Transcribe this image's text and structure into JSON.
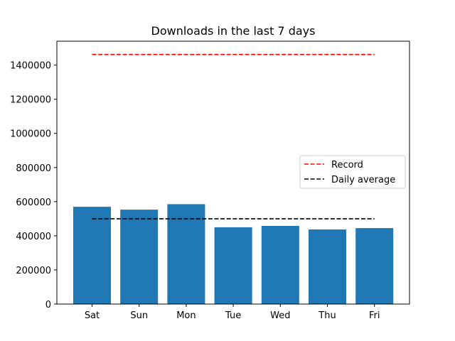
{
  "chart_data": {
    "type": "bar",
    "title": "Downloads in the last 7 days",
    "xlabel": "",
    "ylabel": "",
    "categories": [
      "Sat",
      "Sun",
      "Mon",
      "Tue",
      "Wed",
      "Thu",
      "Fri"
    ],
    "values": [
      570000,
      553000,
      585000,
      450000,
      458000,
      437000,
      445000
    ],
    "bar_color": "#1f77b4",
    "ylim": [
      0,
      1540000
    ],
    "yticks": [
      0,
      200000,
      400000,
      600000,
      800000,
      1000000,
      1200000,
      1400000
    ],
    "ytick_labels": [
      "0",
      "200000",
      "400000",
      "600000",
      "800000",
      "1000000",
      "1200000",
      "1400000"
    ],
    "grid": false,
    "reference_lines": [
      {
        "name": "Record",
        "value": 1462000,
        "color": "#ff0000",
        "style": "dashed"
      },
      {
        "name": "Daily average",
        "value": 500000,
        "color": "#000000",
        "style": "dashed"
      }
    ],
    "legend": {
      "placement": "center-right",
      "entries": [
        "Record",
        "Daily average"
      ]
    }
  }
}
